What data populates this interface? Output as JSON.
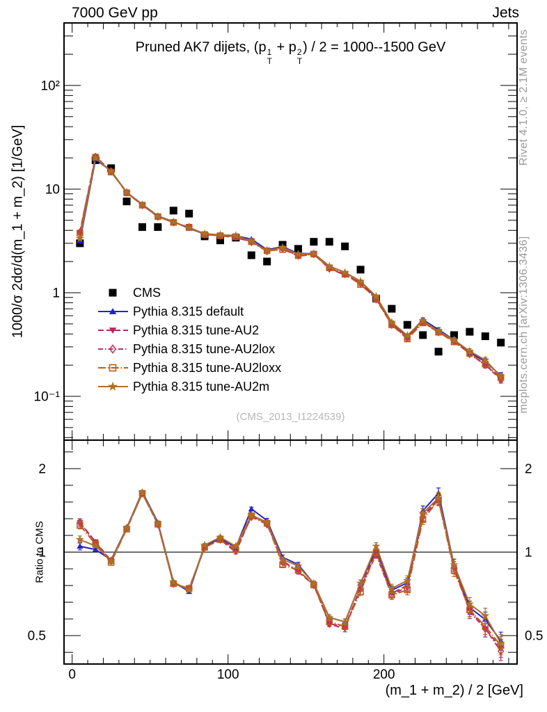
{
  "header": {
    "left": "7000 GeV pp",
    "right": "Jets"
  },
  "side_notes": {
    "top_right": "Rivet 4.1.0, ≥ 2.1M events",
    "bottom_right": "mcplots.cern.ch [arXiv:1306.3436]"
  },
  "watermark": "(CMS_2013_I1224539)",
  "chart_data": {
    "type": "line",
    "title_plain": "Pruned AK7 dijets, (p_T^1 + p_T^2) / 2 = 1000--1500 GeV",
    "title_parts": [
      {
        "t": "Pruned AK7 dijets, (p"
      },
      {
        "sup": "1",
        "sub": "T"
      },
      {
        "t": " + p"
      },
      {
        "sup": "2",
        "sub": "T"
      },
      {
        "t": ") / 2 = 1000--1500 GeV"
      }
    ],
    "xlabel": "(m_1 + m_2) / 2 [GeV]",
    "xrange": [
      -5.2,
      285.4
    ],
    "x_ticks_labeled": [
      0,
      100,
      200
    ],
    "panels": [
      {
        "id": "main",
        "yscale": "log",
        "ylabel": "1000/σ  2dσ/d(m_1 + m_2) [1/GeV]",
        "yrange": [
          0.0378,
          401
        ]
      },
      {
        "id": "ratio",
        "yscale": "log",
        "ylabel": "Ratio to CMS",
        "yrange": [
          0.395,
          2.533
        ],
        "reference_line": 1.0
      }
    ],
    "y_main_tick_labels": [
      {
        "value": 100,
        "label": "10²"
      },
      {
        "value": 10,
        "label": "10"
      },
      {
        "value": 1,
        "label": "1"
      },
      {
        "value": 0.1,
        "label": "10⁻¹"
      }
    ],
    "y_ratio_tick_labels": [
      {
        "value": 2,
        "label": "2"
      },
      {
        "value": 1,
        "label": "1"
      },
      {
        "value": 0.5,
        "label": "0.5"
      }
    ],
    "legend_position": "upper-left-inside",
    "bin_centers": [
      5,
      15,
      25,
      35,
      45,
      55,
      65,
      75,
      85,
      95,
      105,
      115,
      125,
      135,
      145,
      155,
      165,
      175,
      185,
      195,
      205,
      215,
      225,
      235,
      245,
      255,
      265,
      275
    ],
    "series": [
      {
        "id": "cms",
        "name": "CMS",
        "role": "reference-data",
        "color": "#000000",
        "marker": "square-filled",
        "line": "none",
        "values": [
          3.0,
          19.0,
          15.9,
          7.6,
          4.3,
          4.3,
          6.2,
          5.8,
          3.5,
          3.2,
          3.4,
          2.3,
          2.0,
          2.9,
          2.65,
          3.1,
          3.1,
          2.8,
          1.67,
          0.88,
          0.7,
          0.49,
          0.39,
          0.27,
          0.39,
          0.42,
          0.38,
          0.33
        ]
      },
      {
        "id": "default",
        "name": "Pythia 8.315 default",
        "role": "mc",
        "color": "#2222cc",
        "marker": "triangle-up-filled",
        "line": "solid",
        "values": [
          3.15,
          19.4,
          14.9,
          9.3,
          7.1,
          5.5,
          4.84,
          4.18,
          3.68,
          3.58,
          3.54,
          3.29,
          2.6,
          2.78,
          2.39,
          2.39,
          1.8,
          1.57,
          1.29,
          0.9,
          0.51,
          0.38,
          0.55,
          0.44,
          0.35,
          0.265,
          0.217,
          0.158
        ]
      },
      {
        "id": "au2",
        "name": "Pythia 8.315 tune-AU2",
        "role": "mc",
        "color": "#b22a5c",
        "marker": "triangle-down-filled",
        "line": "dashed",
        "values": [
          3.84,
          20.7,
          14.8,
          9.2,
          7.0,
          5.42,
          4.77,
          4.29,
          3.64,
          3.55,
          3.4,
          3.11,
          2.54,
          2.7,
          2.25,
          2.36,
          1.71,
          1.48,
          1.25,
          0.88,
          0.497,
          0.372,
          0.527,
          0.419,
          0.343,
          0.26,
          0.201,
          0.149
        ]
      },
      {
        "id": "au2lox",
        "name": "Pythia 8.315 tune-AU2lox",
        "role": "mc",
        "color": "#c03060",
        "marker": "diamond-open",
        "line": "dashdot",
        "values": [
          3.84,
          20.5,
          14.8,
          9.27,
          7.0,
          5.42,
          4.77,
          4.29,
          3.64,
          3.55,
          3.47,
          3.08,
          2.52,
          2.67,
          2.28,
          2.36,
          1.71,
          1.51,
          1.24,
          0.862,
          0.49,
          0.368,
          0.523,
          0.416,
          0.343,
          0.256,
          0.201,
          0.145
        ]
      },
      {
        "id": "au2loxx",
        "name": "Pythia 8.315 tune-AU2loxx",
        "role": "mc",
        "color": "#bf5a18",
        "marker": "square-open",
        "line": "dashdot-long",
        "values": [
          3.75,
          20.3,
          14.6,
          9.2,
          7.0,
          5.42,
          4.77,
          4.29,
          3.64,
          3.55,
          3.47,
          3.11,
          2.54,
          2.61,
          2.28,
          2.36,
          1.74,
          1.51,
          1.2,
          0.88,
          0.49,
          0.358,
          0.511,
          0.416,
          0.335,
          0.26,
          0.205,
          0.152
        ]
      },
      {
        "id": "au2m",
        "name": "Pythia 8.315 tune-AU2m",
        "role": "mc",
        "color": "#a97129",
        "marker": "star-filled",
        "line": "solid",
        "values": [
          3.33,
          20.0,
          14.8,
          9.27,
          7.05,
          5.46,
          4.84,
          4.23,
          3.71,
          3.62,
          3.57,
          3.13,
          2.56,
          2.73,
          2.36,
          2.39,
          1.8,
          1.57,
          1.29,
          0.924,
          0.518,
          0.387,
          0.538,
          0.424,
          0.351,
          0.273,
          0.224,
          0.155
        ]
      }
    ],
    "mc_rel_err": [
      0.03,
      0.01,
      0.01,
      0.01,
      0.01,
      0.012,
      0.012,
      0.012,
      0.013,
      0.014,
      0.015,
      0.016,
      0.017,
      0.018,
      0.019,
      0.02,
      0.022,
      0.024,
      0.027,
      0.03,
      0.035,
      0.04,
      0.04,
      0.045,
      0.05,
      0.055,
      0.065,
      0.075
    ]
  }
}
